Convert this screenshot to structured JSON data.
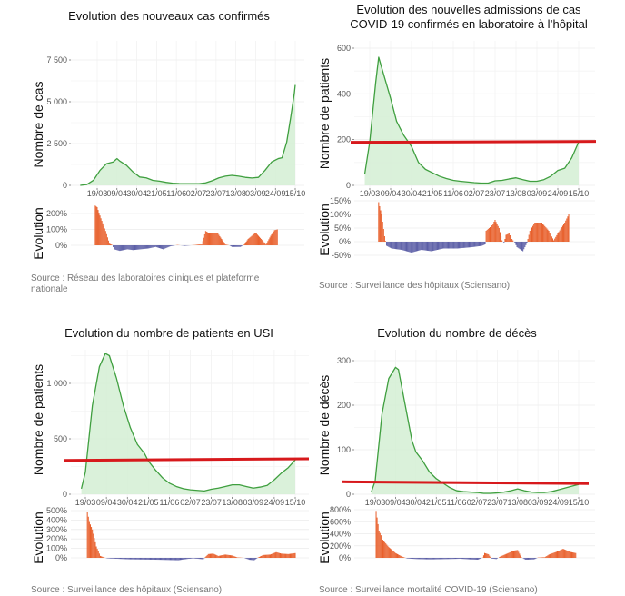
{
  "chart_data": [
    {
      "type": "line",
      "title": [
        "Evolution des nouveaux cas confirmés"
      ],
      "ylabel": "Nombre de cas",
      "yticks": [
        0,
        2500,
        5000,
        7500
      ],
      "ytick_labels": [
        "0",
        "2 500",
        "5 000",
        "7 500"
      ],
      "xtick_labels": [
        "19/03",
        "09/04",
        "30/04",
        "21/05",
        "11/06",
        "02/07",
        "23/07",
        "13/08",
        "03/09",
        "24/09",
        "15/10"
      ],
      "series": [
        [
          "01/03",
          0
        ],
        [
          "08/03",
          50
        ],
        [
          "15/03",
          300
        ],
        [
          "22/03",
          900
        ],
        [
          "29/03",
          1300
        ],
        [
          "05/04",
          1400
        ],
        [
          "09/04",
          1600
        ],
        [
          "12/04",
          1450
        ],
        [
          "19/04",
          1200
        ],
        [
          "26/04",
          800
        ],
        [
          "03/05",
          500
        ],
        [
          "10/05",
          450
        ],
        [
          "17/05",
          300
        ],
        [
          "24/05",
          250
        ],
        [
          "31/05",
          180
        ],
        [
          "07/06",
          130
        ],
        [
          "14/06",
          110
        ],
        [
          "21/06",
          100
        ],
        [
          "28/06",
          100
        ],
        [
          "05/07",
          100
        ],
        [
          "12/07",
          150
        ],
        [
          "19/07",
          280
        ],
        [
          "26/07",
          450
        ],
        [
          "02/08",
          550
        ],
        [
          "09/08",
          600
        ],
        [
          "16/08",
          550
        ],
        [
          "23/08",
          480
        ],
        [
          "30/08",
          440
        ],
        [
          "06/09",
          480
        ],
        [
          "13/09",
          900
        ],
        [
          "20/09",
          1400
        ],
        [
          "27/09",
          1600
        ],
        [
          "01/10",
          1650
        ],
        [
          "06/10",
          2600
        ],
        [
          "10/10",
          4000
        ],
        [
          "14/10",
          5500
        ],
        [
          "15/10",
          6000
        ]
      ],
      "reference_line": null,
      "evolution": {
        "ylabel": "Evolution",
        "yticks": [
          0,
          100,
          200
        ],
        "ytick_labels": [
          "0%",
          "100%",
          "200%"
        ],
        "values": [
          [
            "17/03",
            250
          ],
          [
            "19/03",
            240
          ],
          [
            "23/03",
            170
          ],
          [
            "28/03",
            90
          ],
          [
            "01/04",
            10
          ],
          [
            "04/04",
            2
          ],
          [
            "06/04",
            -25
          ],
          [
            "12/04",
            -35
          ],
          [
            "20/04",
            -25
          ],
          [
            "26/04",
            -30
          ],
          [
            "04/05",
            -25
          ],
          [
            "12/05",
            -20
          ],
          [
            "20/05",
            -10
          ],
          [
            "28/05",
            -25
          ],
          [
            "05/06",
            -5
          ],
          [
            "12/06",
            2
          ],
          [
            "20/06",
            -3
          ],
          [
            "01/07",
            2
          ],
          [
            "05/07",
            5
          ],
          [
            "08/07",
            5
          ],
          [
            "12/07",
            90
          ],
          [
            "16/07",
            75
          ],
          [
            "20/07",
            80
          ],
          [
            "25/07",
            75
          ],
          [
            "29/07",
            40
          ],
          [
            "02/08",
            5
          ],
          [
            "06/08",
            0
          ],
          [
            "09/08",
            -10
          ],
          [
            "18/08",
            -10
          ],
          [
            "22/08",
            5
          ],
          [
            "26/08",
            40
          ],
          [
            "03/09",
            80
          ],
          [
            "09/09",
            40
          ],
          [
            "14/09",
            5
          ],
          [
            "19/09",
            60
          ],
          [
            "23/09",
            95
          ],
          [
            "26/09",
            100
          ]
        ]
      },
      "source": [
        "Source : Réseau des laboratoires cliniques et plateforme",
        "nationale"
      ]
    },
    {
      "type": "line",
      "title": [
        "Evolution des nouvelles admissions de cas",
        "COVID-19 confirmés en laboratoire à l’hôpital"
      ],
      "ylabel": "Nombre de patients",
      "yticks": [
        0,
        200,
        400,
        600
      ],
      "ytick_labels": [
        "0",
        "200",
        "400",
        "600"
      ],
      "xtick_labels": [
        "19/03",
        "09/04",
        "30/04",
        "21/05",
        "11/06",
        "02/07",
        "23/07",
        "13/08",
        "03/09",
        "24/09",
        "15/10"
      ],
      "series": [
        [
          "14/03",
          50
        ],
        [
          "19/03",
          190
        ],
        [
          "25/03",
          450
        ],
        [
          "28/03",
          560
        ],
        [
          "01/04",
          500
        ],
        [
          "09/04",
          380
        ],
        [
          "15/04",
          280
        ],
        [
          "22/04",
          220
        ],
        [
          "30/04",
          170
        ],
        [
          "07/05",
          100
        ],
        [
          "14/05",
          70
        ],
        [
          "21/05",
          55
        ],
        [
          "28/05",
          40
        ],
        [
          "04/06",
          30
        ],
        [
          "11/06",
          22
        ],
        [
          "18/06",
          18
        ],
        [
          "25/06",
          15
        ],
        [
          "02/07",
          12
        ],
        [
          "09/07",
          10
        ],
        [
          "16/07",
          10
        ],
        [
          "23/07",
          20
        ],
        [
          "30/07",
          22
        ],
        [
          "06/08",
          28
        ],
        [
          "13/08",
          33
        ],
        [
          "20/08",
          25
        ],
        [
          "27/08",
          18
        ],
        [
          "03/09",
          18
        ],
        [
          "10/09",
          25
        ],
        [
          "17/09",
          40
        ],
        [
          "24/09",
          65
        ],
        [
          "01/10",
          75
        ],
        [
          "08/10",
          120
        ],
        [
          "15/10",
          190
        ]
      ],
      "reference_line": {
        "start": 188,
        "end": 192
      },
      "evolution": {
        "ylabel": "Evolution",
        "yticks": [
          -50,
          0,
          50,
          100,
          150
        ],
        "ytick_labels": [
          "-50%",
          "0%",
          "50%",
          "100%",
          "150%"
        ],
        "values": [
          [
            "28/03",
            145
          ],
          [
            "31/03",
            100
          ],
          [
            "03/04",
            20
          ],
          [
            "05/04",
            -15
          ],
          [
            "10/04",
            -25
          ],
          [
            "20/04",
            -30
          ],
          [
            "30/04",
            -40
          ],
          [
            "10/05",
            -30
          ],
          [
            "20/05",
            -35
          ],
          [
            "01/06",
            -25
          ],
          [
            "15/06",
            -25
          ],
          [
            "30/06",
            -20
          ],
          [
            "10/07",
            -15
          ],
          [
            "13/07",
            -10
          ],
          [
            "14/07",
            40
          ],
          [
            "20/07",
            60
          ],
          [
            "23/07",
            80
          ],
          [
            "27/07",
            50
          ],
          [
            "30/07",
            5
          ],
          [
            "01/08",
            -5
          ],
          [
            "03/08",
            25
          ],
          [
            "06/08",
            30
          ],
          [
            "09/08",
            10
          ],
          [
            "12/08",
            -5
          ],
          [
            "14/08",
            -20
          ],
          [
            "20/08",
            -35
          ],
          [
            "24/08",
            -5
          ],
          [
            "27/08",
            40
          ],
          [
            "01/09",
            70
          ],
          [
            "08/09",
            70
          ],
          [
            "15/09",
            40
          ],
          [
            "20/09",
            5
          ],
          [
            "24/09",
            30
          ],
          [
            "01/10",
            70
          ],
          [
            "05/10",
            100
          ]
        ]
      },
      "source": [
        "Source : Surveillance des hôpitaux (Sciensano)"
      ]
    },
    {
      "type": "line",
      "title": [
        "Evolution du nombre de patients en USI"
      ],
      "ylabel": "Nombre de patients",
      "yticks": [
        0,
        500,
        1000
      ],
      "ytick_labels": [
        "0",
        "500",
        "1 000"
      ],
      "xtick_labels": [
        "19/03",
        "09/04",
        "30/04",
        "21/05",
        "11/06",
        "02/07",
        "23/07",
        "13/08",
        "03/09",
        "24/09",
        "15/10"
      ],
      "series": [
        [
          "15/03",
          50
        ],
        [
          "19/03",
          200
        ],
        [
          "26/03",
          800
        ],
        [
          "02/04",
          1150
        ],
        [
          "08/04",
          1270
        ],
        [
          "12/04",
          1250
        ],
        [
          "19/04",
          1050
        ],
        [
          "26/04",
          800
        ],
        [
          "03/05",
          600
        ],
        [
          "10/05",
          450
        ],
        [
          "17/05",
          370
        ],
        [
          "21/05",
          300
        ],
        [
          "28/05",
          220
        ],
        [
          "04/06",
          150
        ],
        [
          "11/06",
          100
        ],
        [
          "18/06",
          70
        ],
        [
          "25/06",
          50
        ],
        [
          "02/07",
          40
        ],
        [
          "09/07",
          35
        ],
        [
          "16/07",
          30
        ],
        [
          "23/07",
          45
        ],
        [
          "30/07",
          55
        ],
        [
          "06/08",
          70
        ],
        [
          "13/08",
          85
        ],
        [
          "20/08",
          85
        ],
        [
          "27/08",
          70
        ],
        [
          "03/09",
          55
        ],
        [
          "10/09",
          65
        ],
        [
          "17/09",
          80
        ],
        [
          "24/09",
          130
        ],
        [
          "01/10",
          190
        ],
        [
          "08/10",
          240
        ],
        [
          "15/10",
          310
        ]
      ],
      "reference_line": {
        "start": 305,
        "end": 320
      },
      "evolution": {
        "ylabel": "Evolution",
        "yticks": [
          0,
          100,
          200,
          300,
          400,
          500
        ],
        "ytick_labels": [
          "0%",
          "100%",
          "200%",
          "300%",
          "400%",
          "500%"
        ],
        "values": [
          [
            "21/03",
            490
          ],
          [
            "23/03",
            380
          ],
          [
            "26/03",
            300
          ],
          [
            "30/03",
            120
          ],
          [
            "03/04",
            20
          ],
          [
            "08/04",
            0
          ],
          [
            "10/04",
            -5
          ],
          [
            "01/05",
            -15
          ],
          [
            "01/06",
            -20
          ],
          [
            "20/06",
            -25
          ],
          [
            "30/06",
            -10
          ],
          [
            "05/07",
            -5
          ],
          [
            "15/07",
            -15
          ],
          [
            "20/07",
            40
          ],
          [
            "25/07",
            45
          ],
          [
            "30/07",
            20
          ],
          [
            "06/08",
            35
          ],
          [
            "13/08",
            25
          ],
          [
            "18/08",
            5
          ],
          [
            "25/08",
            0
          ],
          [
            "30/08",
            -20
          ],
          [
            "04/09",
            -25
          ],
          [
            "08/09",
            5
          ],
          [
            "13/09",
            30
          ],
          [
            "20/09",
            35
          ],
          [
            "26/09",
            60
          ],
          [
            "01/10",
            45
          ],
          [
            "08/10",
            40
          ],
          [
            "15/10",
            50
          ]
        ]
      },
      "source": [
        "Source : Surveillance des hôpitaux (Sciensano)"
      ]
    },
    {
      "type": "line",
      "title": [
        "Evolution du nombre de décès"
      ],
      "ylabel": "Nombre de décès",
      "yticks": [
        0,
        100,
        200,
        300
      ],
      "ytick_labels": [
        "0",
        "100",
        "200",
        "300"
      ],
      "xtick_labels": [
        "19/03",
        "09/04",
        "30/04",
        "21/05",
        "11/06",
        "02/07",
        "23/07",
        "13/08",
        "03/09",
        "24/09",
        "15/10"
      ],
      "series": [
        [
          "15/03",
          5
        ],
        [
          "19/03",
          30
        ],
        [
          "26/03",
          180
        ],
        [
          "02/04",
          260
        ],
        [
          "09/04",
          285
        ],
        [
          "12/04",
          280
        ],
        [
          "19/04",
          200
        ],
        [
          "26/04",
          120
        ],
        [
          "30/04",
          95
        ],
        [
          "07/05",
          75
        ],
        [
          "14/05",
          50
        ],
        [
          "21/05",
          35
        ],
        [
          "28/05",
          25
        ],
        [
          "04/06",
          15
        ],
        [
          "11/06",
          8
        ],
        [
          "18/06",
          6
        ],
        [
          "25/06",
          5
        ],
        [
          "02/07",
          4
        ],
        [
          "09/07",
          2
        ],
        [
          "16/07",
          2
        ],
        [
          "23/07",
          3
        ],
        [
          "30/07",
          5
        ],
        [
          "06/08",
          8
        ],
        [
          "13/08",
          12
        ],
        [
          "20/08",
          8
        ],
        [
          "27/08",
          5
        ],
        [
          "03/09",
          4
        ],
        [
          "10/09",
          4
        ],
        [
          "17/09",
          6
        ],
        [
          "24/09",
          10
        ],
        [
          "01/10",
          14
        ],
        [
          "08/10",
          18
        ],
        [
          "15/10",
          22
        ]
      ],
      "reference_line": {
        "start": 28,
        "end": 24
      },
      "evolution": {
        "ylabel": "Evolution",
        "yticks": [
          0,
          200,
          400,
          600,
          800
        ],
        "ytick_labels": [
          "0%",
          "200%",
          "400%",
          "600%",
          "800%"
        ],
        "values": [
          [
            "20/03",
            780
          ],
          [
            "23/03",
            450
          ],
          [
            "27/03",
            300
          ],
          [
            "02/04",
            180
          ],
          [
            "09/04",
            80
          ],
          [
            "16/04",
            20
          ],
          [
            "21/04",
            -10
          ],
          [
            "01/05",
            -20
          ],
          [
            "15/05",
            -25
          ],
          [
            "01/06",
            -20
          ],
          [
            "15/06",
            -15
          ],
          [
            "25/06",
            -25
          ],
          [
            "03/07",
            -30
          ],
          [
            "08/07",
            5
          ],
          [
            "10/07",
            80
          ],
          [
            "14/07",
            60
          ],
          [
            "17/07",
            -10
          ],
          [
            "22/07",
            -20
          ],
          [
            "26/07",
            20
          ],
          [
            "02/08",
            70
          ],
          [
            "09/08",
            120
          ],
          [
            "13/08",
            130
          ],
          [
            "17/08",
            10
          ],
          [
            "21/08",
            -30
          ],
          [
            "30/08",
            -25
          ],
          [
            "03/09",
            5
          ],
          [
            "10/09",
            10
          ],
          [
            "15/09",
            60
          ],
          [
            "22/09",
            100
          ],
          [
            "29/09",
            150
          ],
          [
            "06/10",
            100
          ],
          [
            "12/10",
            80
          ]
        ]
      },
      "source": [
        "Source : Surveillance mortalité COVID-19 (Sciensano)"
      ]
    }
  ],
  "colors": {
    "area": "#d4efd4",
    "line": "#3f9f3f",
    "reference": "#d7191c",
    "positive": "#e8602c",
    "negative": "#5b5ea6"
  }
}
